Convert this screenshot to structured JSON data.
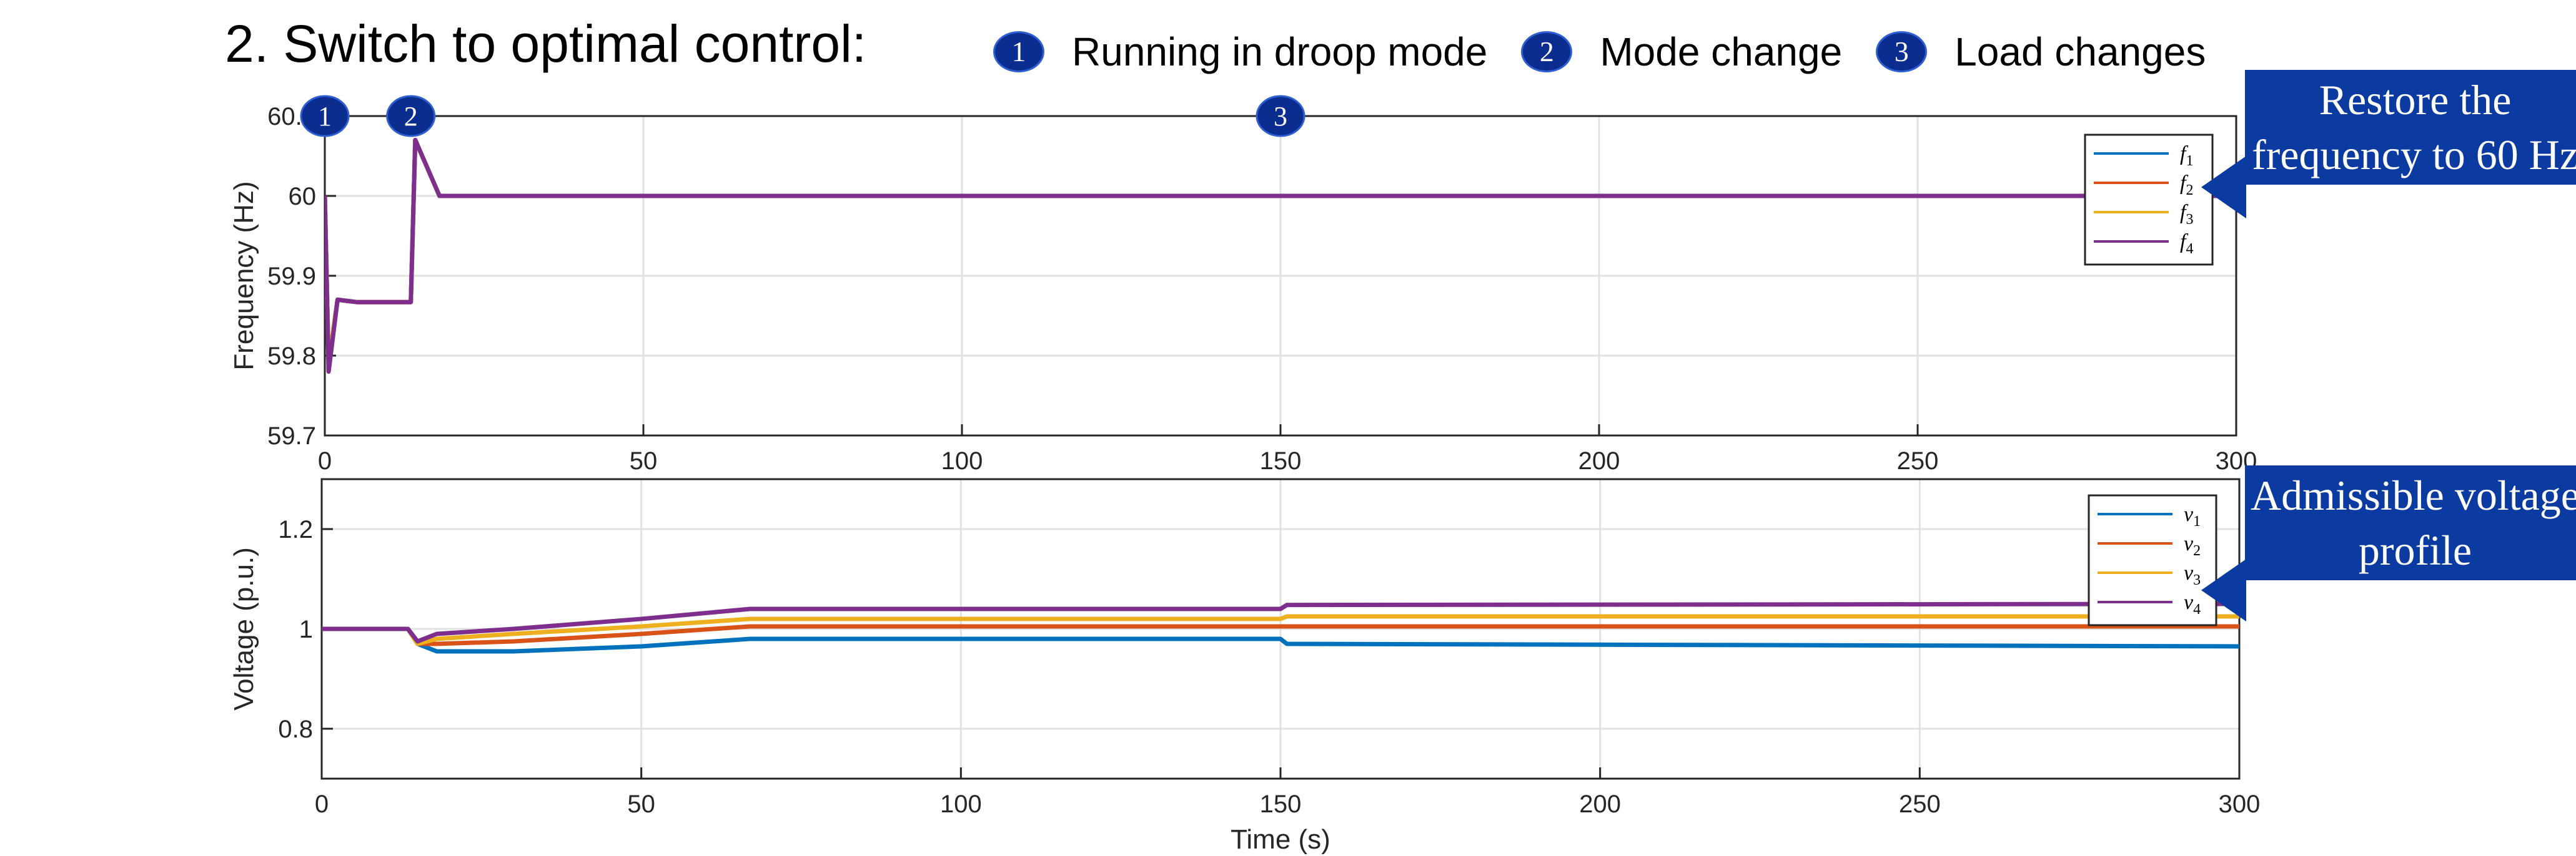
{
  "title": "2. Switch to optimal control:",
  "events": [
    {
      "number": "1",
      "label": "Running in droop mode",
      "time": 0
    },
    {
      "number": "2",
      "label": "Mode change",
      "time": 13.5
    },
    {
      "number": "3",
      "label": "Load changes",
      "time": 150
    }
  ],
  "callouts": {
    "frequency": "Restore the frequency to 60 Hz",
    "voltage": "Admissible voltage profile"
  },
  "colors": {
    "series1": "#0072BD",
    "series2": "#D95319",
    "series3": "#EDB120",
    "series4": "#7E2F8E",
    "badge": "#0a2d8f",
    "callout": "#0b3aa0"
  },
  "chart_data": [
    {
      "type": "line",
      "ylabel": "Frequency (Hz)",
      "xlabel": "",
      "xlim": [
        0,
        300
      ],
      "ylim": [
        59.7,
        60.1
      ],
      "xticks": [
        "0",
        "50",
        "100",
        "150",
        "200",
        "250",
        "300"
      ],
      "yticks": [
        "59.7",
        "59.8",
        "59.9",
        "60",
        "60.1"
      ],
      "grid": true,
      "legend_position": "top-right",
      "series": [
        {
          "name": "f1",
          "sym": "f",
          "sub": "1",
          "color_key": "series1",
          "x": [
            0,
            0.6,
            2,
            5,
            13.5,
            14.2,
            18,
            150,
            151,
            300
          ],
          "y": [
            60,
            59.79,
            59.87,
            59.867,
            59.867,
            60.07,
            60,
            60,
            60,
            60
          ]
        },
        {
          "name": "f2",
          "sym": "f",
          "sub": "2",
          "color_key": "series2",
          "x": [
            0,
            0.6,
            2,
            5,
            13.5,
            14.2,
            18,
            150,
            151,
            300
          ],
          "y": [
            60,
            59.79,
            59.87,
            59.867,
            59.867,
            60.07,
            60,
            60,
            60,
            60
          ]
        },
        {
          "name": "f3",
          "sym": "f",
          "sub": "3",
          "color_key": "series3",
          "x": [
            0,
            0.6,
            2,
            5,
            13.5,
            14.2,
            18,
            150,
            151,
            300
          ],
          "y": [
            60,
            59.79,
            59.87,
            59.867,
            59.867,
            60.07,
            60,
            60,
            60,
            60
          ]
        },
        {
          "name": "f4",
          "sym": "f",
          "sub": "4",
          "color_key": "series4",
          "x": [
            0,
            0.6,
            2,
            5,
            13.5,
            14.2,
            18,
            150,
            151,
            300
          ],
          "y": [
            60,
            59.78,
            59.87,
            59.867,
            59.867,
            60.07,
            60,
            60,
            60,
            60
          ]
        }
      ]
    },
    {
      "type": "line",
      "ylabel": "Voltage (p.u.)",
      "xlabel": "Time (s)",
      "xlim": [
        0,
        300
      ],
      "ylim": [
        0.7,
        1.3
      ],
      "xticks": [
        "0",
        "50",
        "100",
        "150",
        "200",
        "250",
        "300"
      ],
      "yticks": [
        "0.8",
        "1",
        "1.2"
      ],
      "grid": true,
      "legend_position": "top-right",
      "series": [
        {
          "name": "v1",
          "sym": "v",
          "sub": "1",
          "color_key": "series1",
          "x": [
            0,
            13.5,
            15,
            18,
            30,
            50,
            67,
            150,
            151,
            300
          ],
          "y": [
            1.0,
            1.0,
            0.97,
            0.955,
            0.955,
            0.965,
            0.98,
            0.98,
            0.97,
            0.965
          ]
        },
        {
          "name": "v2",
          "sym": "v",
          "sub": "2",
          "color_key": "series2",
          "x": [
            0,
            13.5,
            15,
            18,
            30,
            50,
            67,
            150,
            151,
            300
          ],
          "y": [
            1.0,
            1.0,
            0.97,
            0.97,
            0.975,
            0.99,
            1.005,
            1.005,
            1.005,
            1.005
          ]
        },
        {
          "name": "v3",
          "sym": "v",
          "sub": "3",
          "color_key": "series3",
          "x": [
            0,
            13.5,
            15,
            18,
            30,
            50,
            67,
            150,
            151,
            300
          ],
          "y": [
            1.0,
            1.0,
            0.97,
            0.98,
            0.99,
            1.005,
            1.02,
            1.02,
            1.025,
            1.025
          ]
        },
        {
          "name": "v4",
          "sym": "v",
          "sub": "4",
          "color_key": "series4",
          "x": [
            0,
            13.5,
            15,
            18,
            30,
            50,
            67,
            150,
            151,
            300
          ],
          "y": [
            1.0,
            1.0,
            0.975,
            0.99,
            1.0,
            1.02,
            1.04,
            1.04,
            1.048,
            1.05
          ]
        }
      ]
    }
  ]
}
